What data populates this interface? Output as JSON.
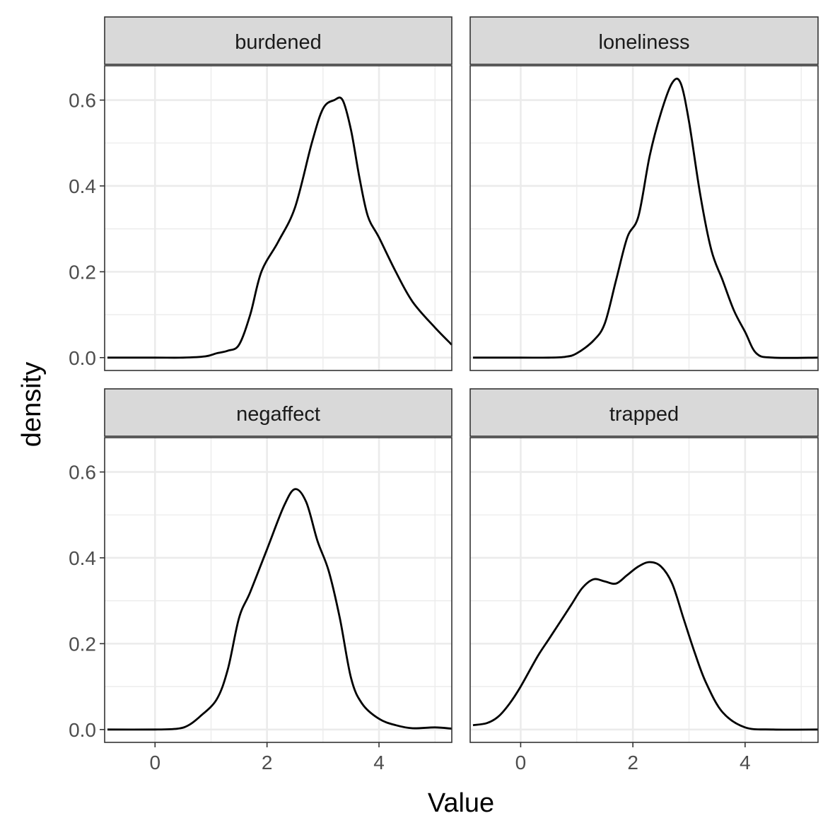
{
  "chart_data": {
    "type": "line",
    "facet_layout": "2x2",
    "xlabel": "Value",
    "ylabel": "density",
    "xlim": [
      -0.9,
      5.3
    ],
    "ylim": [
      -0.03,
      0.68
    ],
    "x_ticks": [
      0,
      2,
      4
    ],
    "y_ticks": [
      0.0,
      0.2,
      0.4,
      0.6
    ],
    "x_tick_labels": [
      "0",
      "2",
      "4"
    ],
    "y_tick_labels": [
      "0.0",
      "0.2",
      "0.4",
      "0.6"
    ],
    "grid": true,
    "legend": "none",
    "line_color": "#000000",
    "strip_color": "#d9d9d9",
    "panels": [
      {
        "label": "burdened",
        "x": [
          -0.85,
          0,
          0.5,
          0.9,
          1.1,
          1.3,
          1.5,
          1.7,
          1.9,
          2.2,
          2.5,
          2.8,
          3.0,
          3.2,
          3.35,
          3.5,
          3.65,
          3.8,
          4.0,
          4.3,
          4.6,
          5.0,
          5.3
        ],
        "y": [
          0,
          0,
          0,
          0.003,
          0.01,
          0.016,
          0.03,
          0.1,
          0.2,
          0.27,
          0.35,
          0.5,
          0.58,
          0.6,
          0.6,
          0.53,
          0.42,
          0.33,
          0.28,
          0.2,
          0.13,
          0.07,
          0.03
        ]
      },
      {
        "label": "loneliness",
        "x": [
          -0.85,
          0,
          0.5,
          0.8,
          1.0,
          1.3,
          1.5,
          1.7,
          1.9,
          2.1,
          2.3,
          2.5,
          2.7,
          2.85,
          3.0,
          3.2,
          3.4,
          3.6,
          3.8,
          4.0,
          4.2,
          4.5,
          5.3
        ],
        "y": [
          0,
          0,
          0,
          0.002,
          0.01,
          0.04,
          0.08,
          0.18,
          0.28,
          0.33,
          0.47,
          0.57,
          0.64,
          0.64,
          0.55,
          0.38,
          0.25,
          0.18,
          0.11,
          0.06,
          0.01,
          0,
          0
        ]
      },
      {
        "label": "negaffect",
        "x": [
          -0.85,
          0,
          0.4,
          0.6,
          0.8,
          1.1,
          1.3,
          1.5,
          1.7,
          2.0,
          2.3,
          2.5,
          2.7,
          2.9,
          3.1,
          3.3,
          3.5,
          3.7,
          4.0,
          4.3,
          4.6,
          5.0,
          5.3
        ],
        "y": [
          0,
          0,
          0.002,
          0.01,
          0.03,
          0.07,
          0.14,
          0.26,
          0.32,
          0.42,
          0.52,
          0.56,
          0.53,
          0.44,
          0.37,
          0.26,
          0.12,
          0.06,
          0.025,
          0.01,
          0.003,
          0.005,
          0.002
        ]
      },
      {
        "label": "trapped",
        "x": [
          -0.85,
          -0.6,
          -0.4,
          -0.2,
          0,
          0.3,
          0.5,
          0.7,
          0.9,
          1.1,
          1.3,
          1.5,
          1.7,
          1.9,
          2.1,
          2.3,
          2.5,
          2.7,
          2.9,
          3.1,
          3.3,
          3.6,
          4.0,
          4.5,
          5.3
        ],
        "y": [
          0.01,
          0.015,
          0.03,
          0.06,
          0.1,
          0.17,
          0.21,
          0.25,
          0.29,
          0.33,
          0.35,
          0.345,
          0.34,
          0.36,
          0.38,
          0.39,
          0.38,
          0.34,
          0.26,
          0.18,
          0.11,
          0.04,
          0.005,
          0,
          0
        ]
      }
    ]
  }
}
